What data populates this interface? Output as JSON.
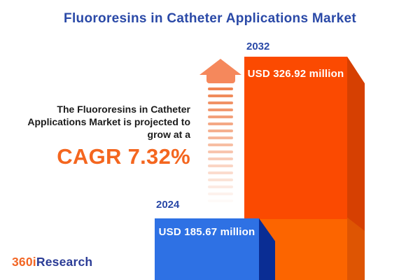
{
  "title": "Fluororesins in Catheter Applications Market",
  "description": {
    "lines": [
      "The Fluororesins in Catheter",
      "Applications Market is projected to",
      "grow at a"
    ],
    "cagr": "CAGR 7.32%"
  },
  "chart_data": {
    "type": "bar",
    "title": "Fluororesins in Catheter Applications Market",
    "categories": [
      "2024",
      "2032"
    ],
    "values": [
      185.67,
      326.92
    ],
    "unit": "USD million",
    "data_labels": [
      "USD 185.67 million",
      "USD 326.92 million"
    ],
    "cagr_percent": 7.32,
    "legend": "none",
    "grid": false,
    "axes": "none",
    "style": "3d-infographic-bars"
  },
  "bars": {
    "b2024": {
      "year": "2024",
      "label": "USD 185.67 million"
    },
    "b2032": {
      "year": "2032",
      "label": "USD 326.92 million"
    }
  },
  "logo": {
    "part1": "360i",
    "part2": "Research"
  },
  "colors": {
    "title_navy": "#2A49A7",
    "cagr_orange": "#F4661F",
    "bar_2032_face_top": "#FB4A01",
    "bar_2032_face_bottom": "#FC6500",
    "bar_2032_side_top": "#D64002",
    "bar_2032_side_bottom": "#DE5503",
    "bar_2024_face": "#2E71E4",
    "bar_2024_side": "#0A2D94",
    "arrow_orange": "#F5885C",
    "logo_orange": "#F26625",
    "logo_navy": "#2B3C96",
    "text_dark": "#1B1B1B",
    "background": "#FFFFFF"
  }
}
